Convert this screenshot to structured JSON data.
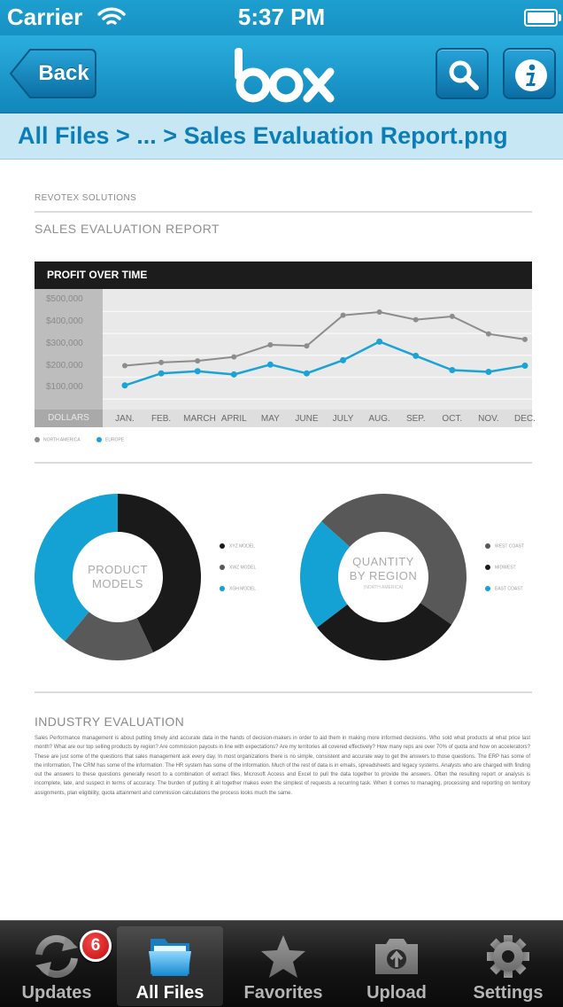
{
  "status_bar": {
    "carrier": "Carrier",
    "time": "5:37 PM"
  },
  "nav": {
    "back_label": "Back",
    "logo_text": "box"
  },
  "breadcrumb": "All Files > ... > Sales Evaluation Report.png",
  "document": {
    "company": "REVOTEX SOLUTIONS",
    "report_title": "SALES EVALUATION REPORT",
    "chart_header": "PROFIT OVER TIME",
    "donut1_label_line1": "PRODUCT",
    "donut1_label_line2": "MODELS",
    "donut2_label_line1": "QUANTITY",
    "donut2_label_line2": "BY REGION",
    "donut2_sub": "(NORTH AMERICA)",
    "donut1_legend": [
      "XYZ MODEL",
      "XWZ MODEL",
      "XGH MODEL"
    ],
    "donut2_legend": [
      "WEST COAST",
      "MIDWEST",
      "EAST COAST"
    ],
    "industry_title": "INDUSTRY EVALUATION",
    "industry_body": "Sales Performance management is about putting timely and accurate data in the hands of decision-makers in order to aid them in making more informed decisions. Who sold what products at what price last month? What are our top selling products by region? Are commission payouts in line with expectations? Are my territories all covered effectively? How many reps are over 70% of quota and how on accelerators? These are just some of the questions that sales management ask every day. In most organizations there is no simple, consistent and accurate way to get the answers to those questions. The ERP has some of the information, The CRM has some of the information. The HR system has some of the information. Much of the rest of data is in emails, spreadsheets and legacy systems. Analysts who are charged with finding out the answers to these questions generally resort to a combination of extract files, Microsoft Access and Excel to pull the data together to provide the answers. Often the resulting report or analysis is incomplete, late, and suspect in terms of accuracy. The burden of putting it all together makes even the simplest of requests a recurring task. When it comes to managing, processing and reporting on territory assignments, plan eligibility, quota attainment and commission calculations the process looks much the same."
  },
  "chart_data": [
    {
      "type": "line",
      "title": "PROFIT OVER TIME",
      "categories": [
        "JAN.",
        "FEB.",
        "MARCH",
        "APRIL",
        "MAY",
        "JUNE",
        "JULY",
        "AUG.",
        "SEP.",
        "OCT.",
        "NOV.",
        "DEC."
      ],
      "y_ticks": [
        "$500,000",
        "$400,000",
        "$300,000",
        "$200,000",
        "$100,000"
      ],
      "y_unit_label": "DOLLARS",
      "ylim": [
        0,
        550000
      ],
      "series": [
        {
          "name": "NORTH AMERICA",
          "color": "#8c8c8c",
          "values": [
            200000,
            215000,
            222000,
            240000,
            295000,
            290000,
            430000,
            445000,
            410000,
            425000,
            345000,
            320000
          ]
        },
        {
          "name": "EUROPE",
          "color": "#1aa3d4",
          "values": [
            110000,
            165000,
            175000,
            160000,
            205000,
            165000,
            225000,
            310000,
            245000,
            180000,
            172000,
            200000
          ]
        }
      ],
      "grid": true,
      "legend": "bottom-left"
    },
    {
      "type": "pie",
      "categories": [
        "XYZ MODEL",
        "XWZ MODEL",
        "XGH MODEL"
      ],
      "values": [
        43,
        18,
        39
      ],
      "colors": [
        "#1a1a1a",
        "#595959",
        "#14a1d3"
      ]
    },
    {
      "type": "pie",
      "categories": [
        "WEST COAST",
        "MIDWEST",
        "EAST COAST"
      ],
      "values": [
        48,
        30,
        22
      ],
      "colors": [
        "#585858",
        "#1a1a1a",
        "#14a1d3"
      ]
    }
  ],
  "tabs": [
    {
      "label": "Updates",
      "badge": "6",
      "icon": "sync-icon"
    },
    {
      "label": "All Files",
      "icon": "folder-icon",
      "active": true
    },
    {
      "label": "Favorites",
      "icon": "star-icon"
    },
    {
      "label": "Upload",
      "icon": "camera-upload-icon"
    },
    {
      "label": "Settings",
      "icon": "gear-icon"
    }
  ],
  "colors": {
    "accent": "#1a9ed2",
    "chart_blue": "#14a1d3",
    "chart_dark": "#1a1a1a",
    "chart_gray": "#595959"
  }
}
